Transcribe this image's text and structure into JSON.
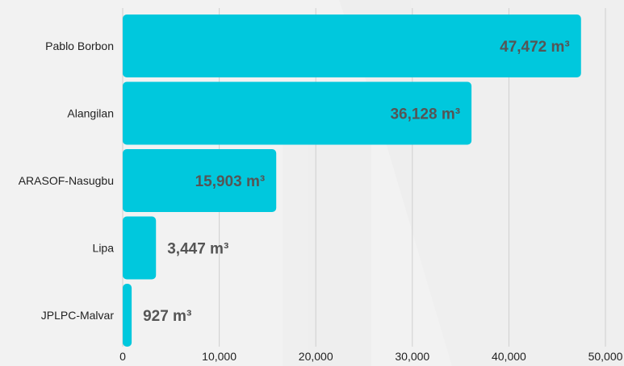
{
  "chart_data": {
    "type": "bar",
    "orientation": "horizontal",
    "categories": [
      "Pablo Borbon",
      "Alangilan",
      "ARASOF-Nasugbu",
      "Lipa",
      "JPLPC-Malvar"
    ],
    "values": [
      47472,
      36128,
      15903,
      3447,
      927
    ],
    "data_labels": [
      "47,472 m³",
      "36,128 m³",
      "15,903 m³",
      "3,447 m³",
      "927 m³"
    ],
    "x_ticks": [
      0,
      10000,
      20000,
      30000,
      40000,
      50000
    ],
    "x_tick_labels": [
      "0",
      "10,000",
      "20,000",
      "30,000",
      "40,000",
      "50,000"
    ],
    "xlim": [
      0,
      50000
    ],
    "title": "",
    "xlabel": "",
    "ylabel": "",
    "grid": "vertical",
    "legend": "none",
    "colors": {
      "bar": "#00c8dd",
      "label_text": "#555555",
      "category_text": "#222222",
      "tick_text": "#222222",
      "grid": "#cfcfcf",
      "background": "#f2f2f2"
    }
  }
}
